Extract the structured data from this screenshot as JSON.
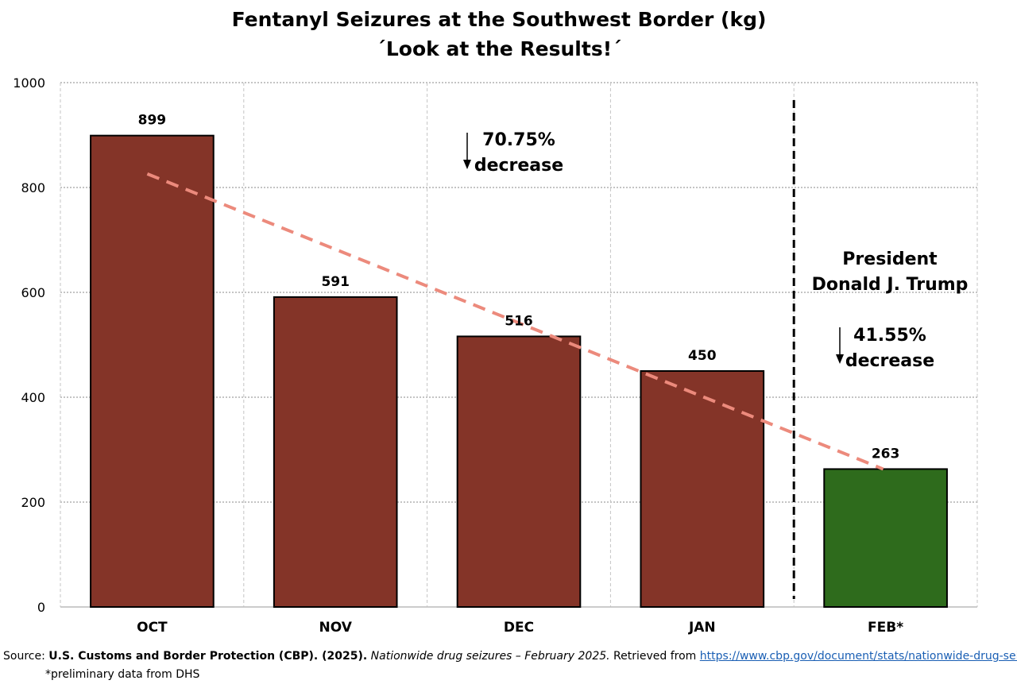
{
  "chart_data": {
    "type": "bar",
    "title_lines": [
      "Fentanyl Seizures at the Southwest Border (kg)",
      "´Look at the Results!´"
    ],
    "categories": [
      "OCT",
      "NOV",
      "DEC",
      "JAN",
      "FEB*"
    ],
    "values": [
      899,
      591,
      516,
      450,
      263
    ],
    "bar_colors": [
      "#843428",
      "#843428",
      "#843428",
      "#843428",
      "#2e6b1c"
    ],
    "ylim": [
      0,
      1000
    ],
    "yticks": [
      0,
      200,
      400,
      600,
      800,
      1000
    ],
    "grid": true,
    "trendline": {
      "style": "dashed",
      "color": "#ec8a7c",
      "from": {
        "x": "OCT",
        "y": 826
      },
      "to": {
        "x": "FEB*",
        "y": 263
      }
    },
    "divider": {
      "between": [
        "JAN",
        "FEB*"
      ],
      "style": "dashed",
      "color": "#000000"
    },
    "annotations": {
      "left_change": {
        "arrow": "↓",
        "line1": "70.75%",
        "line2": "decrease"
      },
      "president": {
        "line1": "President",
        "line2": "Donald J. Trump"
      },
      "right_change": {
        "arrow": "↓",
        "line1": "41.55%",
        "line2": "decrease"
      }
    }
  },
  "footer": {
    "prefix": "Source: ",
    "org": "U.S. Customs and Border Protection (CBP). (2025).",
    "title": "Nationwide drug seizures – February 2025.",
    "retrieved": " Retrieved from ",
    "url": "https://www.cbp.gov/document/stats/nationwide-drug-seizures",
    "note": "*preliminary data from DHS"
  }
}
